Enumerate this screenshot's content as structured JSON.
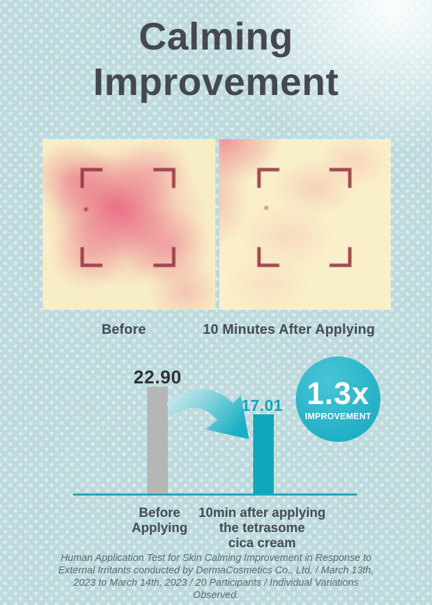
{
  "header": {
    "title": "Calming\nImprovement"
  },
  "comparison": {
    "before_label": "Before",
    "after_label": "10 Minutes After Applying"
  },
  "chart_data": {
    "type": "bar",
    "title": "Skin redness before vs after applying",
    "categories": [
      "Before Applying",
      "10min after applying the tetrasome cica cream"
    ],
    "categories_display": [
      "Before\nApplying",
      "10min after applying\nthe tetrasome\ncica cream"
    ],
    "values": [
      22.9,
      17.01
    ],
    "value_labels": [
      "22.90",
      "17.01"
    ],
    "bar_colors": [
      "#b7b6b6",
      "#0fa8ba"
    ],
    "value_label_colors": [
      "#2e3337",
      "#13a4b7"
    ],
    "axis_color": "#29a4b2",
    "ylim": [
      0,
      25
    ],
    "grid": false,
    "legend": false
  },
  "badge": {
    "multiplier": "1.3x",
    "label": "IMPROVEMENT",
    "color": "#2cb5c9"
  },
  "footnote": {
    "text": "Human Application Test for Skin Calming Improvement in Response to\nExternal Irritants conducted by DermaCosmetics Co., Ltd. / March 13th,\n2023 to March 14th, 2023 / 20 Participants / Individual Variations\nObserved."
  },
  "icons": {
    "arrow": "curved-arrow-down-right",
    "corner_markers": "crop-corner-brackets"
  },
  "colors": {
    "background": "#bedadd",
    "title_text": "#45494f",
    "accent_teal": "#1fadc3"
  }
}
